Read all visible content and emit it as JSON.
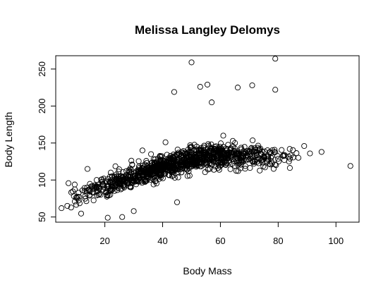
{
  "chart_data": {
    "type": "scatter",
    "title": "Melissa Langley Delomys",
    "xlabel": "Body Mass",
    "ylabel": "Body Length",
    "xlim": [
      3,
      108
    ],
    "ylim": [
      43,
      268
    ],
    "xticks": [
      20,
      40,
      60,
      80,
      100
    ],
    "yticks": [
      50,
      100,
      150,
      200,
      250
    ],
    "grid": false,
    "legend": "none",
    "marker": "open-circle",
    "outliers": [
      {
        "x": 50,
        "y": 259
      },
      {
        "x": 79,
        "y": 264
      },
      {
        "x": 44,
        "y": 219
      },
      {
        "x": 53,
        "y": 226
      },
      {
        "x": 55.5,
        "y": 229
      },
      {
        "x": 66,
        "y": 225
      },
      {
        "x": 71,
        "y": 228
      },
      {
        "x": 79,
        "y": 222
      },
      {
        "x": 57,
        "y": 205
      },
      {
        "x": 61,
        "y": 160
      },
      {
        "x": 41,
        "y": 151
      },
      {
        "x": 105,
        "y": 119
      },
      {
        "x": 95,
        "y": 138
      },
      {
        "x": 91,
        "y": 136
      },
      {
        "x": 14,
        "y": 115
      },
      {
        "x": 21,
        "y": 49
      },
      {
        "x": 26,
        "y": 50
      },
      {
        "x": 30,
        "y": 58
      },
      {
        "x": 45,
        "y": 70
      },
      {
        "x": 5,
        "y": 62
      },
      {
        "x": 7,
        "y": 65
      },
      {
        "x": 33,
        "y": 140
      },
      {
        "x": 36,
        "y": 135
      },
      {
        "x": 87,
        "y": 130
      },
      {
        "x": 84,
        "y": 142
      },
      {
        "x": 89,
        "y": 146
      },
      {
        "x": 77,
        "y": 122
      }
    ],
    "cluster": {
      "count": 1100,
      "x_range": [
        6,
        88
      ],
      "x_mode": 42,
      "trend": {
        "intercept": 66,
        "slope": 1.25,
        "max": 132
      },
      "y_spread_sd": 7.5
    }
  }
}
